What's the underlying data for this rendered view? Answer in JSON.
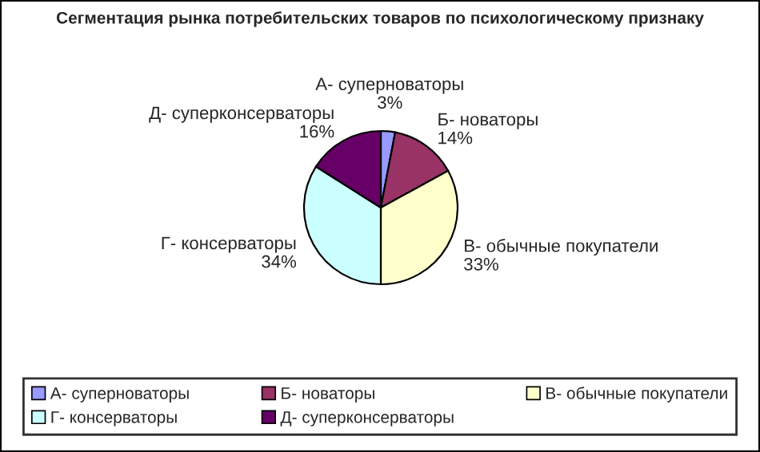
{
  "chart_data": {
    "type": "pie",
    "title": "Сегментация рынка потребительских товаров по психологическому признаку",
    "categories": [
      "А- суперноваторы",
      "Б- новаторы",
      "В- обычные покупатели",
      "Г- консерваторы",
      "Д- суперконсерваторы"
    ],
    "values": [
      3,
      14,
      33,
      34,
      16
    ],
    "value_labels": [
      "3%",
      "14%",
      "33%",
      "34%",
      "16%"
    ],
    "colors": [
      "#9999ff",
      "#993366",
      "#ffffcc",
      "#ccffff",
      "#660066"
    ],
    "legend": "bottom"
  }
}
